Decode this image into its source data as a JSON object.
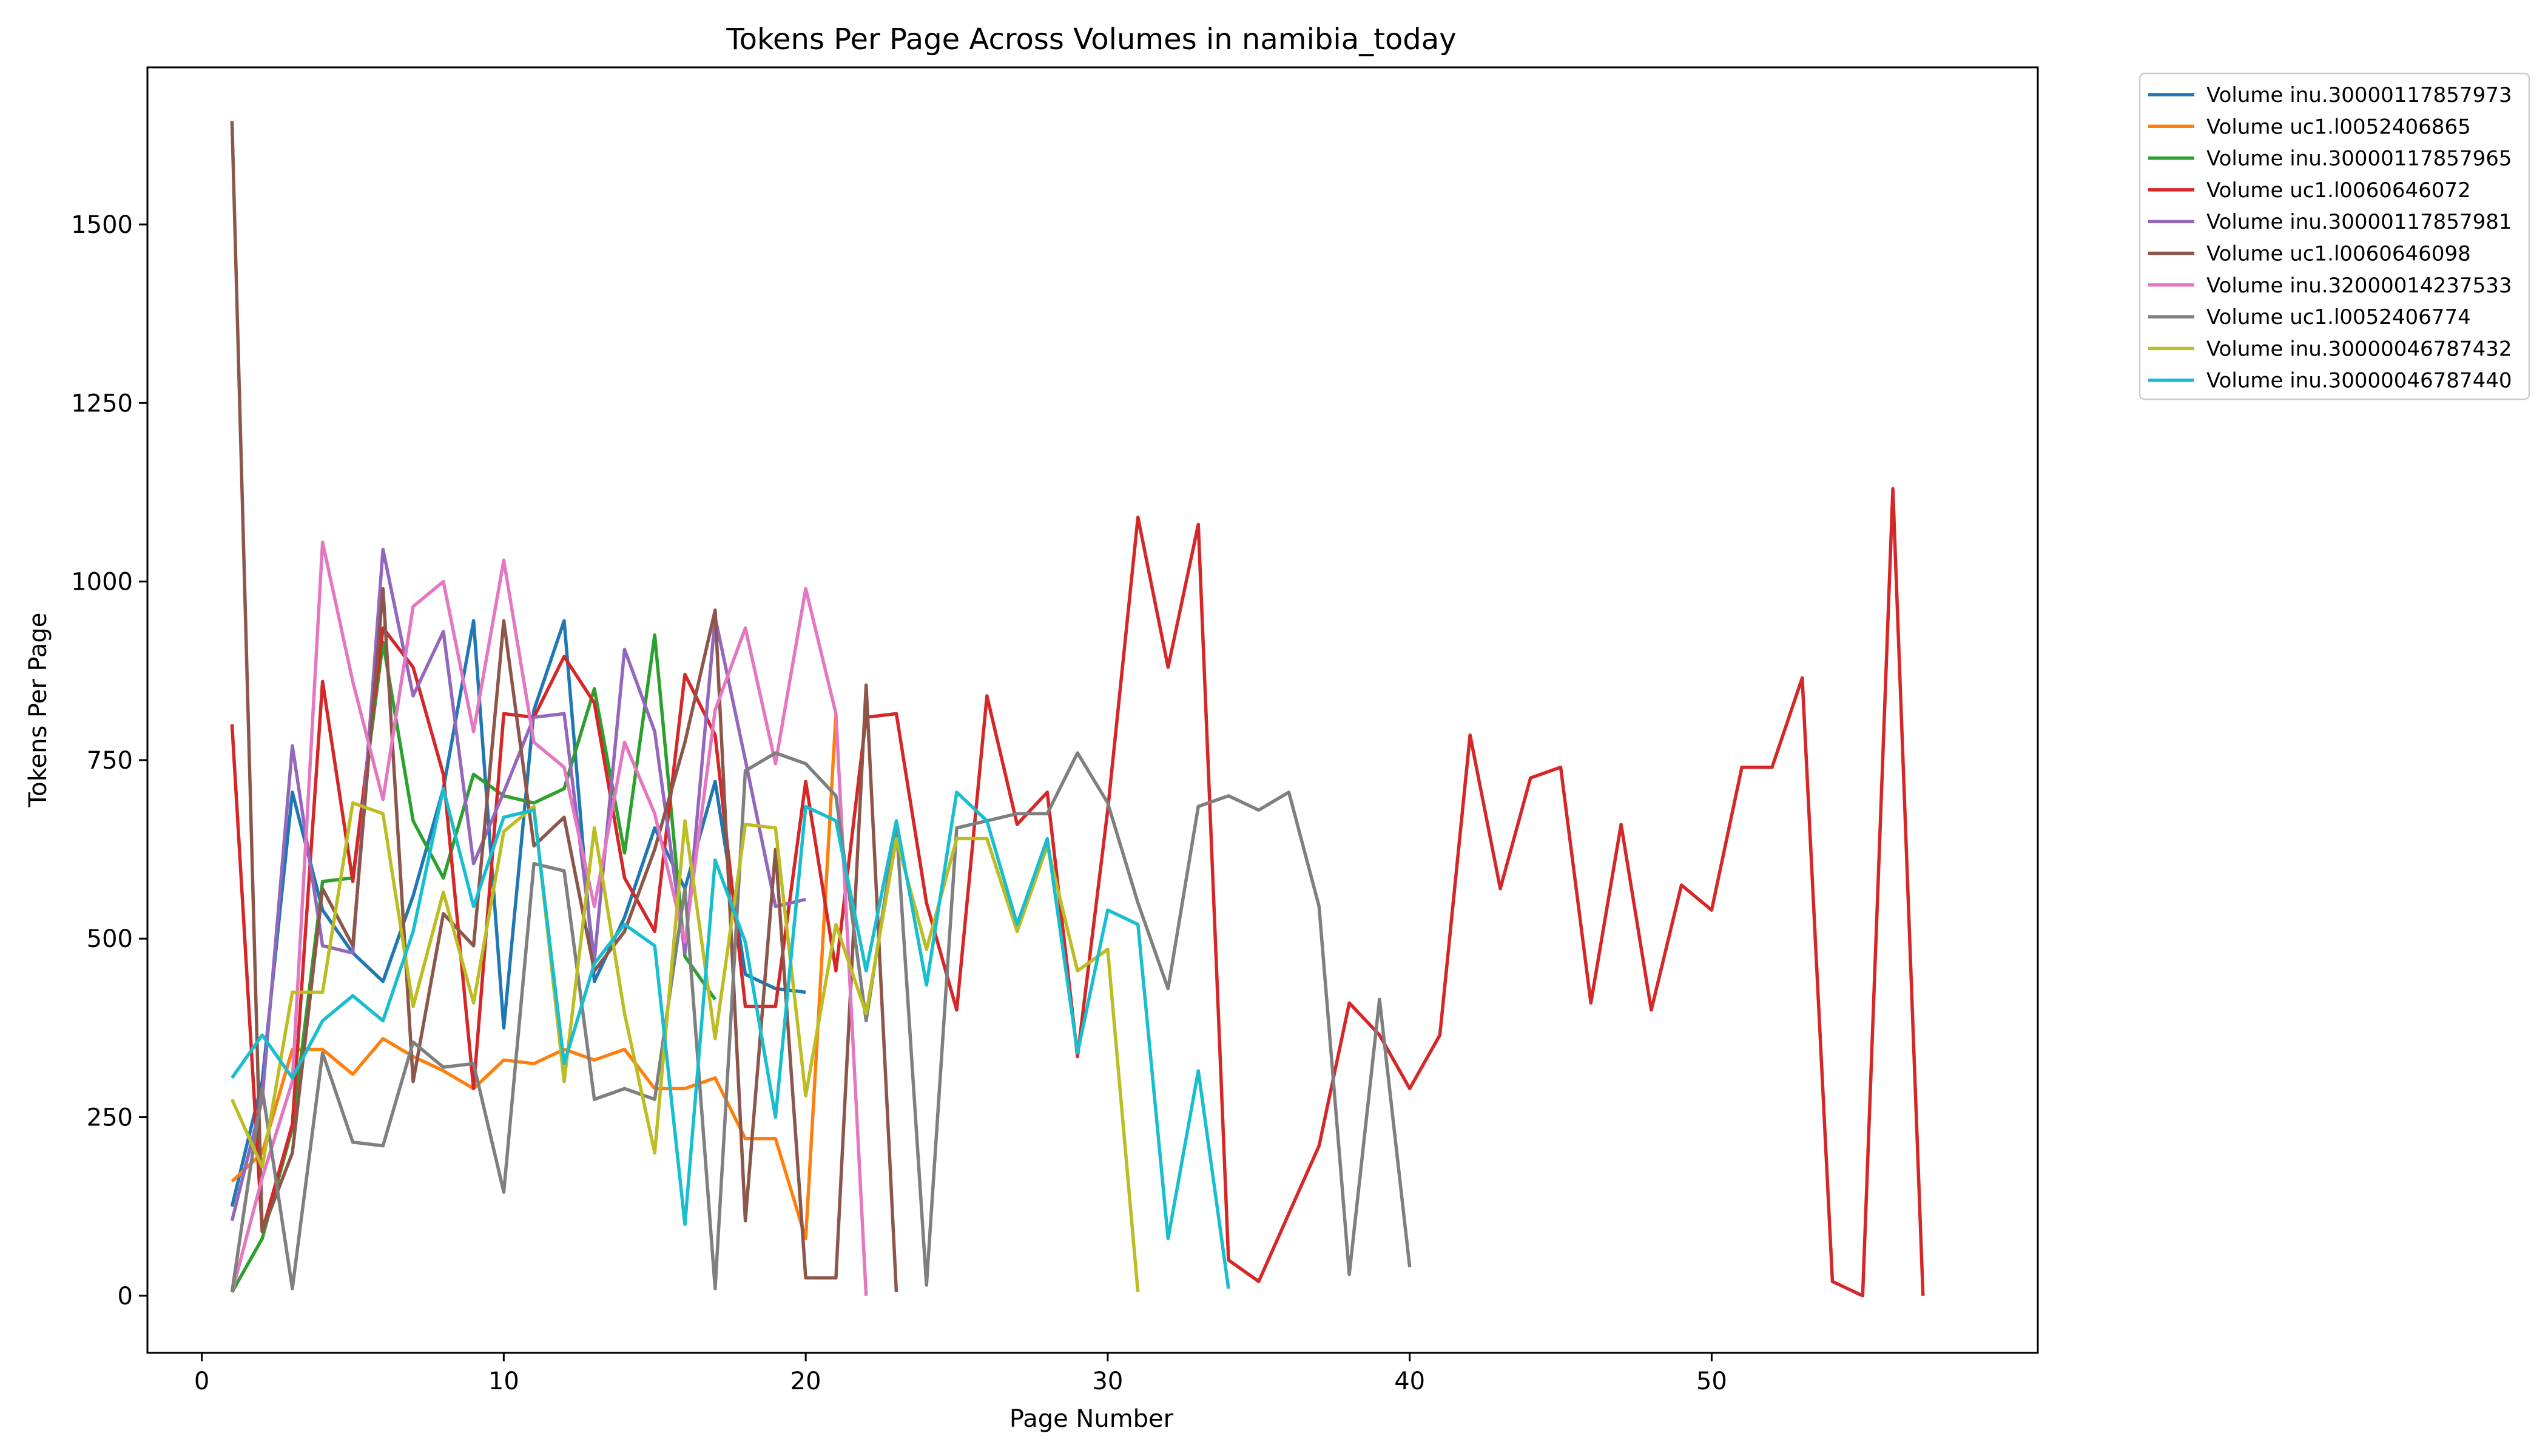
{
  "chart_data": {
    "type": "line",
    "title": "Tokens Per Page Across Volumes in namibia_today",
    "xlabel": "Page Number",
    "ylabel": "Tokens Per Page",
    "xlim": [
      -1.8,
      60.8
    ],
    "ylim": [
      -80,
      1720
    ],
    "xticks": [
      0,
      10,
      20,
      30,
      40,
      50
    ],
    "yticks": [
      0,
      250,
      500,
      750,
      1000,
      1250,
      1500
    ],
    "grid": false,
    "legend": "outside-top-right",
    "series": [
      {
        "name": "Volume inu.30000117857973",
        "color": "#1f77b4",
        "values": [
          125,
          300,
          705,
          540,
          480,
          440,
          560,
          710,
          945,
          375,
          820,
          945,
          440,
          530,
          655,
          570,
          720,
          450,
          430,
          425
        ]
      },
      {
        "name": "Volume uc1.l0052406865",
        "color": "#ff7f0e",
        "values": [
          160,
          200,
          345,
          345,
          310,
          360,
          335,
          315,
          290,
          330,
          325,
          345,
          330,
          345,
          290,
          290,
          305,
          220,
          220,
          80,
          815
        ]
      },
      {
        "name": "Volume inu.30000117857965",
        "color": "#2ca02c",
        "values": [
          5,
          80,
          235,
          580,
          585,
          915,
          665,
          585,
          730,
          700,
          690,
          710,
          850,
          620,
          925,
          475,
          415
        ]
      },
      {
        "name": "Volume uc1.l0060646072",
        "color": "#d62728",
        "values": [
          800,
          90,
          240,
          860,
          580,
          935,
          880,
          730,
          290,
          815,
          810,
          895,
          830,
          585,
          510,
          870,
          785,
          405,
          405,
          720,
          455,
          810,
          815,
          550,
          400,
          840,
          660,
          705,
          335,
          680,
          1090,
          880,
          1080,
          50,
          20,
          115,
          210,
          410,
          365,
          290,
          365,
          785,
          570,
          725,
          740,
          410,
          660,
          400,
          575,
          540,
          740,
          740,
          865,
          20,
          0,
          1130,
          0
        ]
      },
      {
        "name": "Volume inu.30000117857981",
        "color": "#9467bd",
        "values": [
          105,
          275,
          770,
          490,
          480,
          1045,
          840,
          930,
          605,
          705,
          810,
          815,
          470,
          905,
          790,
          480,
          950,
          750,
          545,
          555
        ]
      },
      {
        "name": "Volume uc1.l0060646098",
        "color": "#8c564b",
        "values": [
          1645,
          90,
          200,
          570,
          490,
          990,
          300,
          535,
          490,
          945,
          630,
          670,
          455,
          510,
          625,
          775,
          960,
          105,
          625,
          25,
          25,
          855,
          5
        ]
      },
      {
        "name": "Volume inu.32000014237533",
        "color": "#e377c2",
        "values": [
          5,
          165,
          300,
          1055,
          860,
          695,
          965,
          1000,
          790,
          1030,
          775,
          740,
          545,
          775,
          675,
          495,
          820,
          935,
          745,
          990,
          815,
          0
        ]
      },
      {
        "name": "Volume uc1.l0052406774",
        "color": "#7f7f7f",
        "values": [
          5,
          290,
          10,
          340,
          215,
          210,
          355,
          320,
          325,
          145,
          605,
          595,
          275,
          290,
          275,
          570,
          10,
          735,
          760,
          745,
          700,
          385,
          660,
          15,
          655,
          665,
          675,
          675,
          760,
          690,
          550,
          430,
          685,
          700,
          680,
          705,
          545,
          30,
          415,
          40
        ]
      },
      {
        "name": "Volume inu.30000046787432",
        "color": "#bcbd22",
        "values": [
          275,
          180,
          425,
          425,
          690,
          675,
          405,
          565,
          410,
          650,
          685,
          300,
          655,
          395,
          200,
          665,
          360,
          660,
          655,
          280,
          520,
          395,
          640,
          485,
          640,
          640,
          510,
          630,
          455,
          485,
          5
        ]
      },
      {
        "name": "Volume inu.30000046787440",
        "color": "#17becf",
        "values": [
          305,
          365,
          305,
          385,
          420,
          385,
          510,
          710,
          545,
          670,
          680,
          325,
          465,
          520,
          490,
          100,
          610,
          495,
          250,
          685,
          665,
          455,
          665,
          435,
          705,
          665,
          520,
          640,
          340,
          540,
          520,
          80,
          315,
          10
        ]
      }
    ]
  }
}
